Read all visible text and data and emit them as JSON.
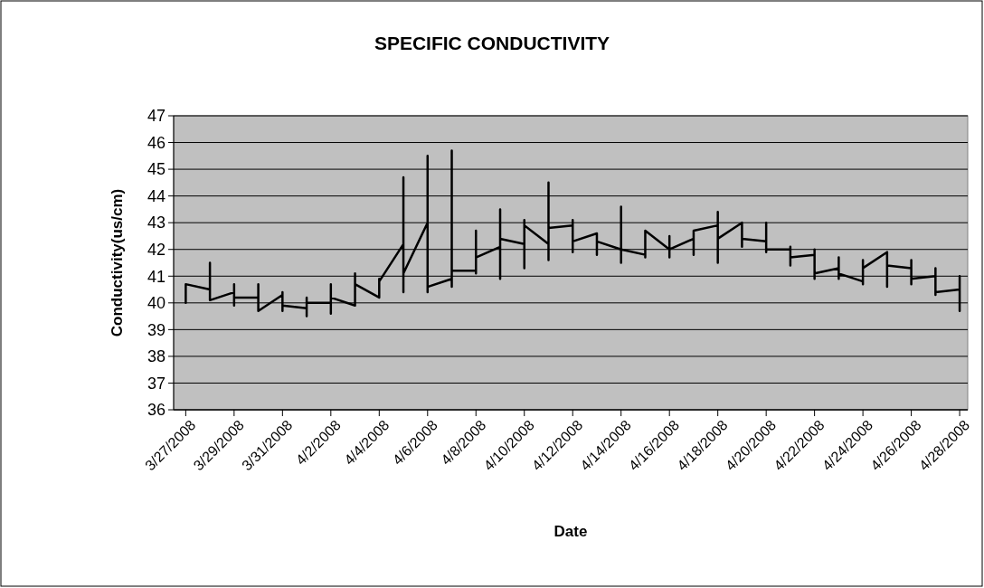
{
  "chart_data": {
    "type": "line",
    "title": "SPECIFIC CONDUCTIVITY",
    "xlabel": "Date",
    "ylabel": "Conductivity(us/cm)",
    "ylim": [
      36,
      47
    ],
    "yticks": [
      36,
      37,
      38,
      39,
      40,
      41,
      42,
      43,
      44,
      45,
      46,
      47
    ],
    "xlim": [
      "2008-03-26T12:00",
      "2008-04-28T08:00"
    ],
    "xticks": [
      {
        "value": "2008-03-27",
        "label": "3/27/2008"
      },
      {
        "value": "2008-03-29",
        "label": "3/29/2008"
      },
      {
        "value": "2008-03-31",
        "label": "3/31/2008"
      },
      {
        "value": "2008-04-02",
        "label": "4/2/2008"
      },
      {
        "value": "2008-04-04",
        "label": "4/4/2008"
      },
      {
        "value": "2008-04-06",
        "label": "4/6/2008"
      },
      {
        "value": "2008-04-08",
        "label": "4/8/2008"
      },
      {
        "value": "2008-04-10",
        "label": "4/10/2008"
      },
      {
        "value": "2008-04-12",
        "label": "4/12/2008"
      },
      {
        "value": "2008-04-14",
        "label": "4/14/2008"
      },
      {
        "value": "2008-04-16",
        "label": "4/16/2008"
      },
      {
        "value": "2008-04-18",
        "label": "4/18/2008"
      },
      {
        "value": "2008-04-20",
        "label": "4/20/2008"
      },
      {
        "value": "2008-04-22",
        "label": "4/22/2008"
      },
      {
        "value": "2008-04-24",
        "label": "4/24/2008"
      },
      {
        "value": "2008-04-26",
        "label": "4/26/2008"
      },
      {
        "value": "2008-04-28",
        "label": "4/28/2008"
      }
    ],
    "grid": "y",
    "marker": "none",
    "line_style": "solid",
    "series": [
      {
        "color": "#000000",
        "x": [
          "2008-03-27",
          "2008-03-27",
          "2008-03-27",
          "2008-03-28",
          "2008-03-28",
          "2008-03-28",
          "2008-03-28",
          "2008-03-29",
          "2008-03-29",
          "2008-03-29",
          "2008-03-29",
          "2008-03-30",
          "2008-03-30",
          "2008-03-30",
          "2008-03-30",
          "2008-03-31",
          "2008-03-31",
          "2008-03-31",
          "2008-03-31",
          "2008-04-01",
          "2008-04-01",
          "2008-04-01",
          "2008-04-01",
          "2008-04-02",
          "2008-04-02",
          "2008-04-02",
          "2008-04-02",
          "2008-04-03",
          "2008-04-03",
          "2008-04-03",
          "2008-04-03",
          "2008-04-04",
          "2008-04-04",
          "2008-04-04",
          "2008-04-04",
          "2008-04-05",
          "2008-04-05",
          "2008-04-05",
          "2008-04-05",
          "2008-04-06",
          "2008-04-06",
          "2008-04-06",
          "2008-04-06",
          "2008-04-07",
          "2008-04-07",
          "2008-04-07",
          "2008-04-07",
          "2008-04-08",
          "2008-04-08",
          "2008-04-08",
          "2008-04-08",
          "2008-04-09",
          "2008-04-09",
          "2008-04-09",
          "2008-04-09",
          "2008-04-10",
          "2008-04-10",
          "2008-04-10",
          "2008-04-10",
          "2008-04-11",
          "2008-04-11",
          "2008-04-11",
          "2008-04-11",
          "2008-04-12",
          "2008-04-12",
          "2008-04-12",
          "2008-04-12",
          "2008-04-13",
          "2008-04-13",
          "2008-04-13",
          "2008-04-13",
          "2008-04-14",
          "2008-04-14",
          "2008-04-14",
          "2008-04-14",
          "2008-04-15",
          "2008-04-15",
          "2008-04-15",
          "2008-04-15",
          "2008-04-16",
          "2008-04-16",
          "2008-04-16",
          "2008-04-16",
          "2008-04-17",
          "2008-04-17",
          "2008-04-17",
          "2008-04-17",
          "2008-04-18",
          "2008-04-18",
          "2008-04-18",
          "2008-04-18",
          "2008-04-19",
          "2008-04-19",
          "2008-04-19",
          "2008-04-19",
          "2008-04-20",
          "2008-04-20",
          "2008-04-20",
          "2008-04-20",
          "2008-04-21",
          "2008-04-21",
          "2008-04-21",
          "2008-04-21",
          "2008-04-22",
          "2008-04-22",
          "2008-04-22",
          "2008-04-22",
          "2008-04-23",
          "2008-04-23",
          "2008-04-23",
          "2008-04-23",
          "2008-04-24",
          "2008-04-24",
          "2008-04-24",
          "2008-04-24",
          "2008-04-25",
          "2008-04-25",
          "2008-04-25",
          "2008-04-25",
          "2008-04-26",
          "2008-04-26",
          "2008-04-26",
          "2008-04-26",
          "2008-04-27",
          "2008-04-27",
          "2008-04-27",
          "2008-04-27",
          "2008-04-28",
          "2008-04-28",
          "2008-04-28"
        ],
        "values": [
          40.6,
          40.0,
          40.7,
          40.5,
          41.5,
          40.1,
          40.1,
          40.4,
          40.7,
          39.9,
          40.2,
          40.2,
          40.7,
          39.7,
          39.7,
          40.3,
          40.4,
          39.7,
          39.9,
          39.8,
          40.2,
          39.5,
          40.0,
          40.0,
          40.7,
          39.6,
          40.2,
          39.9,
          41.1,
          39.9,
          40.7,
          40.2,
          40.9,
          40.2,
          40.8,
          42.2,
          44.7,
          40.4,
          41.1,
          43.0,
          45.5,
          40.4,
          40.6,
          40.9,
          45.7,
          40.6,
          41.2,
          41.2,
          42.7,
          41.1,
          41.7,
          42.1,
          43.5,
          40.9,
          42.4,
          42.2,
          43.1,
          41.3,
          42.9,
          42.2,
          44.5,
          41.6,
          42.8,
          42.9,
          43.1,
          41.9,
          42.3,
          42.6,
          42.6,
          41.8,
          42.3,
          42.0,
          43.6,
          41.5,
          42.0,
          41.8,
          42.7,
          41.7,
          42.7,
          42.0,
          42.5,
          41.7,
          42.0,
          42.4,
          42.7,
          41.8,
          42.7,
          42.9,
          43.4,
          41.5,
          42.4,
          43.0,
          43.0,
          42.1,
          42.4,
          42.3,
          43.0,
          41.9,
          42.0,
          42.0,
          42.1,
          41.4,
          41.7,
          41.8,
          42.0,
          40.9,
          41.1,
          41.3,
          41.7,
          40.9,
          41.1,
          40.8,
          41.6,
          40.7,
          41.3,
          41.9,
          41.9,
          40.6,
          41.4,
          41.3,
          41.6,
          40.7,
          40.9,
          41.0,
          41.3,
          40.3,
          40.4,
          40.5,
          41.0,
          39.7
        ]
      }
    ]
  }
}
